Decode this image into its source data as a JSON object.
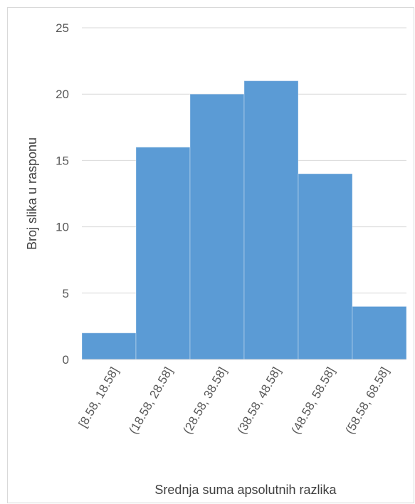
{
  "chart_data": {
    "type": "bar",
    "title": "",
    "xlabel": "Srednja suma apsolutnih razlika",
    "ylabel": "Broj slika u rasponu",
    "categories": [
      "[8.58, 18.58]",
      "(18.58, 28.58]",
      "(28.58, 38.58]",
      "(38.58, 48.58]",
      "(48.58, 58.58]",
      "(58.58, 68.58]"
    ],
    "values": [
      2,
      16,
      20,
      21,
      14,
      4
    ],
    "ylim": [
      0,
      25
    ],
    "yticks": [
      "0",
      "5",
      "10",
      "15",
      "20",
      "25"
    ],
    "grid": true,
    "legend": "none",
    "bar_color": "#5b9bd5",
    "grid_color": "#d9d9d9"
  }
}
